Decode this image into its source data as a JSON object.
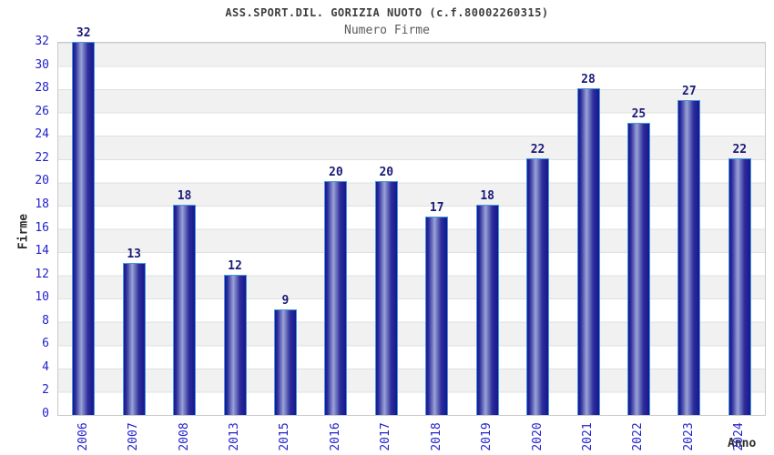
{
  "chart_data": {
    "type": "bar",
    "title": "ASS.SPORT.DIL. GORIZIA NUOTO (c.f.80002260315)",
    "subtitle": "Numero Firme",
    "xlabel": "Anno",
    "ylabel": "Firme",
    "categories": [
      "2006",
      "2007",
      "2008",
      "2013",
      "2015",
      "2016",
      "2017",
      "2018",
      "2019",
      "2020",
      "2021",
      "2022",
      "2023",
      "2024"
    ],
    "values": [
      32,
      13,
      18,
      12,
      9,
      20,
      20,
      17,
      18,
      22,
      28,
      25,
      27,
      22
    ],
    "ylim": [
      0,
      32
    ],
    "ytick_step": 2,
    "yticks": [
      0,
      2,
      4,
      6,
      8,
      10,
      12,
      14,
      16,
      18,
      20,
      22,
      24,
      26,
      28,
      30,
      32
    ],
    "legend": "none",
    "grid": "horizontal alternating bands every 2 units with light gridlines",
    "colors": {
      "title": "#3d3d3d",
      "subtitle": "#5a5a5a",
      "tick_label": "#2222cc",
      "value_label": "#1a1a78",
      "axis_title": "#2e2e2e",
      "bar_dark": "#17178e",
      "bar_mid": "#2d2d9c",
      "bar_light": "#9aa3d6",
      "bar_border": "#4596e0",
      "band": "#f1f1f1",
      "grid_line": "#e0e0e0",
      "plot_border": "#c9c9c9"
    }
  }
}
